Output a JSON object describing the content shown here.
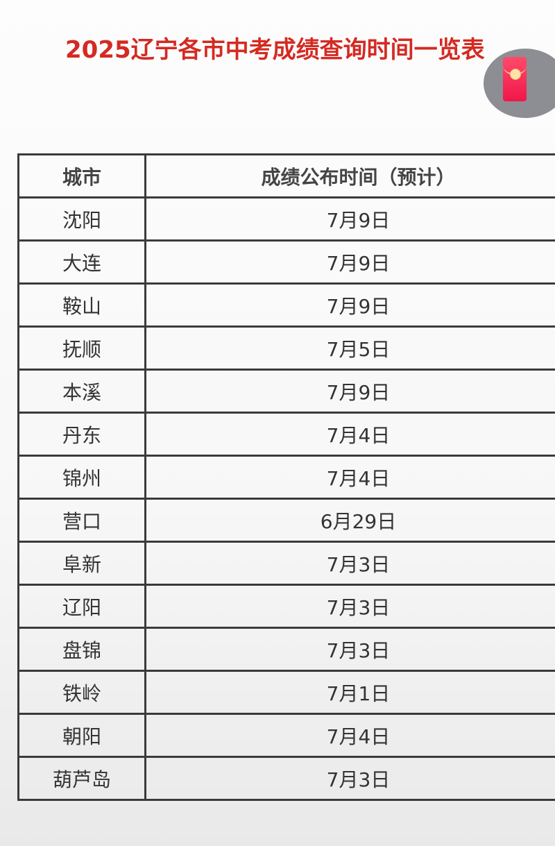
{
  "title": "2025辽宁各市中考成绩查询时间一览表",
  "overlay_icon": "red-envelope-icon",
  "table": {
    "headers": [
      "城市",
      "成绩公布时间（预计）"
    ],
    "rows": [
      {
        "city": "沈阳",
        "date": "7月9日"
      },
      {
        "city": "大连",
        "date": "7月9日"
      },
      {
        "city": "鞍山",
        "date": "7月9日"
      },
      {
        "city": "抚顺",
        "date": "7月5日"
      },
      {
        "city": "本溪",
        "date": "7月9日"
      },
      {
        "city": "丹东",
        "date": "7月4日"
      },
      {
        "city": "锦州",
        "date": "7月4日"
      },
      {
        "city": "营口",
        "date": "6月29日"
      },
      {
        "city": "阜新",
        "date": "7月3日"
      },
      {
        "city": "辽阳",
        "date": "7月3日"
      },
      {
        "city": "盘锦",
        "date": "7月3日"
      },
      {
        "city": "铁岭",
        "date": "7月1日"
      },
      {
        "city": "朝阳",
        "date": "7月4日"
      },
      {
        "city": "葫芦岛",
        "date": "7月3日"
      }
    ]
  }
}
